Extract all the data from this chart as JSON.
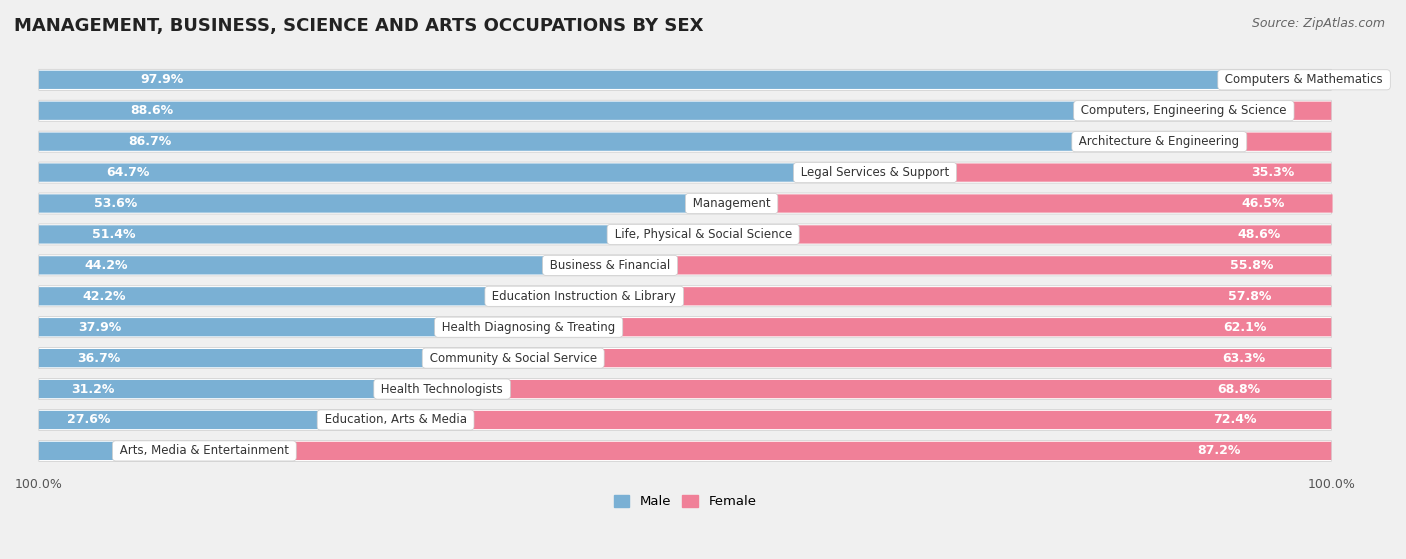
{
  "title": "MANAGEMENT, BUSINESS, SCIENCE AND ARTS OCCUPATIONS BY SEX",
  "source": "Source: ZipAtlas.com",
  "categories": [
    "Computers & Mathematics",
    "Computers, Engineering & Science",
    "Architecture & Engineering",
    "Legal Services & Support",
    "Management",
    "Life, Physical & Social Science",
    "Business & Financial",
    "Education Instruction & Library",
    "Health Diagnosing & Treating",
    "Community & Social Service",
    "Health Technologists",
    "Education, Arts & Media",
    "Arts, Media & Entertainment"
  ],
  "male_pct": [
    97.9,
    88.6,
    86.7,
    64.7,
    53.6,
    51.4,
    44.2,
    42.2,
    37.9,
    36.7,
    31.2,
    27.6,
    12.8
  ],
  "female_pct": [
    2.1,
    11.4,
    13.3,
    35.3,
    46.5,
    48.6,
    55.8,
    57.8,
    62.1,
    63.3,
    68.8,
    72.4,
    87.2
  ],
  "male_color": "#7ab0d4",
  "female_color": "#f08098",
  "bg_color": "#f0f0f0",
  "bar_bg_color": "#ffffff",
  "row_bg_color": "#e8e8e8",
  "male_label": "Male",
  "female_label": "Female",
  "title_fontsize": 13,
  "label_fontsize": 9,
  "tick_fontsize": 9,
  "source_fontsize": 9
}
